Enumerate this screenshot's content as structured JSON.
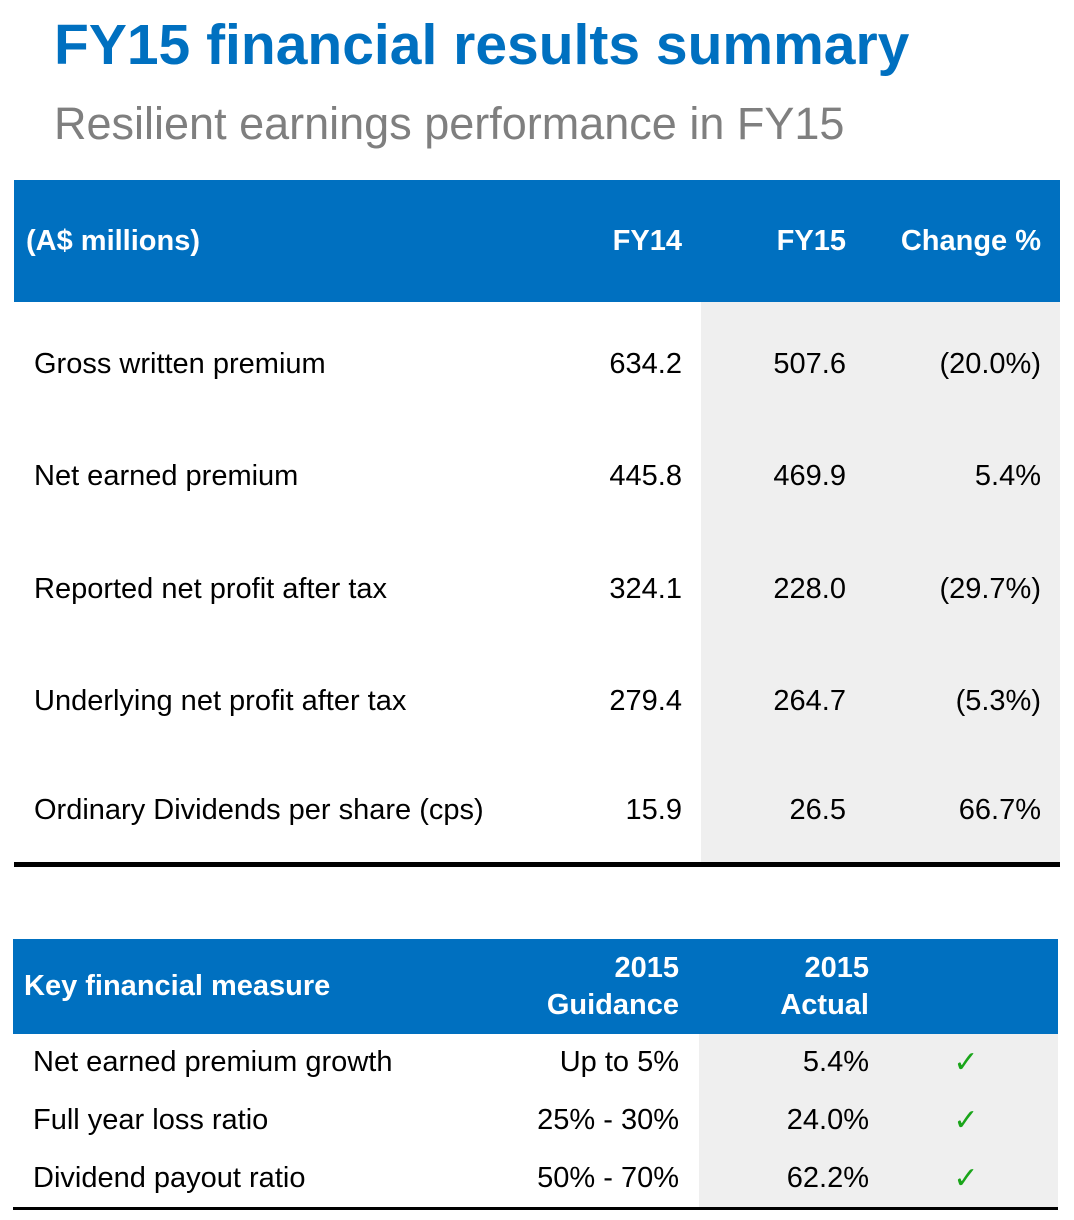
{
  "title": "FY15 financial results summary",
  "subtitle": "Resilient earnings performance in FY15",
  "colors": {
    "header_bg": "#0070c0",
    "title": "#0070c0",
    "subtitle": "#7f7f7f",
    "shade": "#efefef",
    "check": "#1aa51a"
  },
  "results_table": {
    "headers": {
      "label": "(A$ millions)",
      "fy14": "FY14",
      "fy15": "FY15",
      "change": "Change %"
    },
    "rows": [
      {
        "label": "Gross written premium",
        "fy14": "634.2",
        "fy15": "507.6",
        "change": "(20.0%)"
      },
      {
        "label": "Net earned premium",
        "fy14": "445.8",
        "fy15": "469.9",
        "change": "5.4%"
      },
      {
        "label": "Reported net profit after tax",
        "fy14": "324.1",
        "fy15": "228.0",
        "change": "(29.7%)"
      },
      {
        "label": "Underlying net profit after tax",
        "fy14": "279.4",
        "fy15": "264.7",
        "change": "(5.3%)"
      },
      {
        "label": "Ordinary Dividends per share (cps)",
        "fy14": "15.9",
        "fy15": "26.5",
        "change": "66.7%"
      }
    ]
  },
  "measures_table": {
    "headers": {
      "label": "Key financial measure",
      "guidance_line1": "2015",
      "guidance_line2": "Guidance",
      "actual_line1": "2015",
      "actual_line2": "Actual"
    },
    "check_icon": "checkmark-icon",
    "rows": [
      {
        "label": "Net earned premium growth",
        "guidance": "Up to 5%",
        "actual": "5.4%",
        "met": "✓"
      },
      {
        "label": "Full year loss ratio",
        "guidance": "25% - 30%",
        "actual": "24.0%",
        "met": "✓"
      },
      {
        "label": "Dividend payout ratio",
        "guidance": "50% - 70%",
        "actual": "62.2%",
        "met": "✓"
      }
    ]
  }
}
